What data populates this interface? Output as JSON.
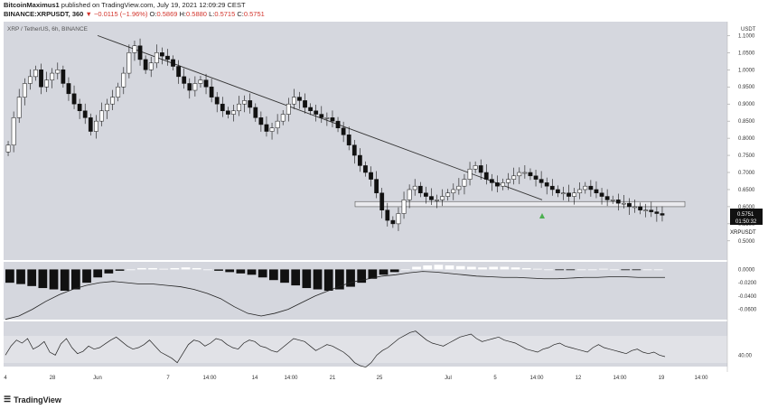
{
  "header": {
    "author": "BitcoinMaximus1",
    "published": "published on TradingView.com, July 19, 2021 12:09:29 CEST",
    "symbol_line": "BINANCE:XRPUSDT, 360",
    "change": "▼ −0.0115 (−1.96%)",
    "ohlc": {
      "o_label": "O:",
      "o": "0.5869",
      "h_label": "H:",
      "h": "0.5880",
      "l_label": "L:",
      "l": "0.5715",
      "c_label": "C:",
      "c": "0.5751"
    }
  },
  "pane_title": "XRP / TetherUS, 6h, BINANCE",
  "price_label": {
    "symbol": "XRPUSDT",
    "price": "0.5751",
    "countdown": "01:50:32"
  },
  "y_axis_unit": "USDT",
  "colors": {
    "pane_bg": "#d5d7de",
    "candle": "#111111",
    "support_zone": "#eaeaee",
    "arrow": "#4caf50",
    "trendline": "#333333"
  },
  "footer": {
    "brand": "TradingView"
  },
  "chart_data": [
    {
      "type": "candlestick",
      "x_ticks": [
        "4",
        "28",
        "Jun",
        "7",
        "14:00",
        "14",
        "14:00",
        "21",
        "25",
        "Jul",
        "5",
        "14:00",
        "12",
        "14:00",
        "19",
        "14:00"
      ],
      "yticks": [
        "1.1000",
        "1.0500",
        "1.0000",
        "0.9500",
        "0.9000",
        "0.8500",
        "0.8000",
        "0.7500",
        "0.7000",
        "0.6500",
        "0.6000",
        "0.5500",
        "0.5000"
      ],
      "ylim": [
        0.46,
        1.13
      ],
      "close_series": [
        0.78,
        0.86,
        0.92,
        0.96,
        0.98,
        1.0,
        0.95,
        0.97,
        0.99,
        1.0,
        0.96,
        0.93,
        0.9,
        0.88,
        0.86,
        0.82,
        0.85,
        0.88,
        0.9,
        0.92,
        0.95,
        0.99,
        1.05,
        1.07,
        1.03,
        1.0,
        1.02,
        1.05,
        1.04,
        1.03,
        1.01,
        0.98,
        0.96,
        0.94,
        0.96,
        0.97,
        0.95,
        0.92,
        0.9,
        0.88,
        0.87,
        0.88,
        0.9,
        0.91,
        0.89,
        0.86,
        0.84,
        0.82,
        0.83,
        0.85,
        0.87,
        0.9,
        0.92,
        0.91,
        0.89,
        0.88,
        0.87,
        0.86,
        0.86,
        0.85,
        0.83,
        0.81,
        0.78,
        0.75,
        0.72,
        0.7,
        0.68,
        0.64,
        0.59,
        0.56,
        0.55,
        0.58,
        0.62,
        0.65,
        0.66,
        0.64,
        0.63,
        0.62,
        0.62,
        0.63,
        0.64,
        0.65,
        0.66,
        0.68,
        0.71,
        0.72,
        0.7,
        0.68,
        0.67,
        0.66,
        0.67,
        0.68,
        0.69,
        0.7,
        0.7,
        0.69,
        0.68,
        0.67,
        0.66,
        0.65,
        0.64,
        0.64,
        0.63,
        0.64,
        0.65,
        0.66,
        0.65,
        0.64,
        0.63,
        0.62,
        0.62,
        0.61,
        0.61,
        0.6,
        0.6,
        0.59,
        0.59,
        0.585,
        0.58,
        0.5751
      ],
      "trendline": [
        [
          1.1
        ],
        [
          0.62
        ]
      ],
      "support_zone": [
        0.6,
        0.615
      ]
    },
    {
      "type": "bar",
      "name": "MACD histogram",
      "yticks": [
        "0.0000",
        "-0.0200",
        "-0.0400",
        "-0.0600"
      ],
      "ylim": [
        -0.07,
        0.006
      ],
      "histogram": [
        -0.02,
        -0.022,
        -0.025,
        -0.028,
        -0.03,
        -0.032,
        -0.03,
        -0.02,
        -0.012,
        -0.006,
        -0.002,
        0.0,
        0.002,
        0.002,
        0.001,
        0.002,
        0.003,
        0.002,
        0.0,
        -0.002,
        -0.004,
        -0.006,
        -0.008,
        -0.012,
        -0.016,
        -0.02,
        -0.024,
        -0.028,
        -0.03,
        -0.032,
        -0.03,
        -0.026,
        -0.02,
        -0.014,
        -0.008,
        -0.004,
        0.0,
        0.004,
        0.006,
        0.007,
        0.006,
        0.005,
        0.004,
        0.003,
        0.004,
        0.004,
        0.003,
        0.002,
        0.001,
        0.0,
        -0.001,
        -0.001,
        0.0,
        0.0,
        0.001,
        0.0,
        -0.001,
        -0.0005,
        0.0,
        0.0
      ],
      "signal_line": [
        -0.075,
        -0.07,
        -0.06,
        -0.048,
        -0.038,
        -0.03,
        -0.024,
        -0.02,
        -0.018,
        -0.02,
        -0.022,
        -0.022,
        -0.024,
        -0.026,
        -0.03,
        -0.036,
        -0.044,
        -0.056,
        -0.066,
        -0.07,
        -0.066,
        -0.06,
        -0.05,
        -0.04,
        -0.032,
        -0.024,
        -0.018,
        -0.014,
        -0.01,
        -0.008,
        -0.005,
        -0.003,
        -0.004,
        -0.006,
        -0.008,
        -0.01,
        -0.011,
        -0.012,
        -0.012,
        -0.013,
        -0.014,
        -0.014,
        -0.013,
        -0.012,
        -0.012,
        -0.011,
        -0.011,
        -0.012,
        -0.012,
        -0.012
      ]
    },
    {
      "type": "line",
      "name": "RSI",
      "yticks": [
        "40.00"
      ],
      "ylim": [
        20,
        80
      ],
      "values": [
        40,
        52,
        60,
        56,
        62,
        48,
        52,
        58,
        44,
        40,
        55,
        62,
        50,
        42,
        45,
        52,
        48,
        50,
        55,
        60,
        64,
        58,
        52,
        48,
        50,
        54,
        60,
        52,
        44,
        40,
        36,
        30,
        42,
        54,
        60,
        58,
        52,
        56,
        62,
        60,
        54,
        50,
        48,
        56,
        60,
        58,
        52,
        50,
        46,
        44,
        50,
        56,
        62,
        60,
        58,
        52,
        46,
        50,
        54,
        52,
        48,
        44,
        38,
        30,
        26,
        24,
        30,
        40,
        46,
        50,
        56,
        62,
        66,
        70,
        72,
        66,
        60,
        56,
        54,
        52,
        56,
        60,
        64,
        66,
        68,
        62,
        58,
        60,
        62,
        64,
        60,
        58,
        56,
        52,
        48,
        46,
        44,
        48,
        50,
        54,
        56,
        52,
        50,
        48,
        46,
        44,
        50,
        54,
        50,
        48,
        46,
        44,
        42,
        46,
        48,
        44,
        42,
        44,
        40,
        38
      ]
    }
  ]
}
